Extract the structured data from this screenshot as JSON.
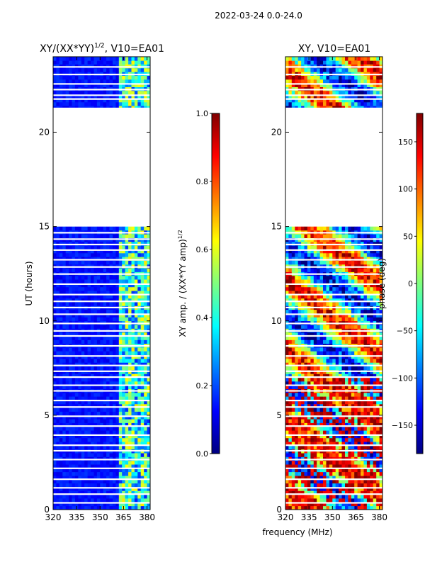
{
  "suptitle": "2022-03-24 0.0-24.0",
  "shared_xlabel": "frequency (MHz)",
  "colors": {
    "jet_stops": [
      "#00007f",
      "#0000ff",
      "#007fff",
      "#00ffff",
      "#7fff7f",
      "#ffff00",
      "#ff7f00",
      "#ff0000",
      "#7f0000"
    ],
    "frame": "#000000",
    "gap": "#ffffff"
  },
  "chart_data": [
    {
      "type": "heatmap",
      "id": "amp",
      "title_main": "XY/(XX*YY)",
      "title_exp": "1/2",
      "title_suffix": ", V10=EA01",
      "ylabel": "UT (hours)",
      "xlim": [
        320,
        382
      ],
      "ylim": [
        0,
        24
      ],
      "xticks": [
        320,
        335,
        350,
        365,
        380
      ],
      "xtick_labels": [
        "320",
        "335",
        "350",
        "365",
        "380"
      ],
      "yticks": [
        0,
        5,
        10,
        15,
        20
      ],
      "ytick_labels": [
        "0",
        "5",
        "10",
        "15",
        "20"
      ],
      "empty_time_range": [
        15.0,
        21.3
      ],
      "bright_freq_band": [
        361,
        382
      ],
      "typical_value_low_band": 0.1,
      "typical_value_high_band": 0.4,
      "colorbar": {
        "label_main": "XY amp. / (XX*YY amp)",
        "label_exp": "1/2",
        "range": [
          0.0,
          1.0
        ],
        "ticks": [
          0.0,
          0.2,
          0.4,
          0.6,
          0.8,
          1.0
        ],
        "tick_labels": [
          "0.0",
          "0.2",
          "0.4",
          "0.6",
          "0.8",
          "1.0"
        ]
      }
    },
    {
      "type": "heatmap",
      "id": "phase",
      "title": "XY, V10=EA01",
      "xlim": [
        320,
        382
      ],
      "ylim": [
        0,
        24
      ],
      "xticks": [
        320,
        335,
        350,
        365,
        380
      ],
      "xtick_labels": [
        "320",
        "335",
        "350",
        "365",
        "380"
      ],
      "yticks": [
        0,
        5,
        10,
        15,
        20
      ],
      "ytick_labels": [
        "0",
        "5",
        "10",
        "15",
        "20"
      ],
      "empty_time_range": [
        15.0,
        21.3
      ],
      "colorbar": {
        "label": "phase (deg)",
        "range": [
          -180,
          180
        ],
        "ticks": [
          -150,
          -100,
          -50,
          0,
          50,
          100,
          150
        ],
        "tick_labels": [
          "−150",
          "−100",
          "−50",
          "0",
          "50",
          "100",
          "150"
        ]
      }
    }
  ]
}
